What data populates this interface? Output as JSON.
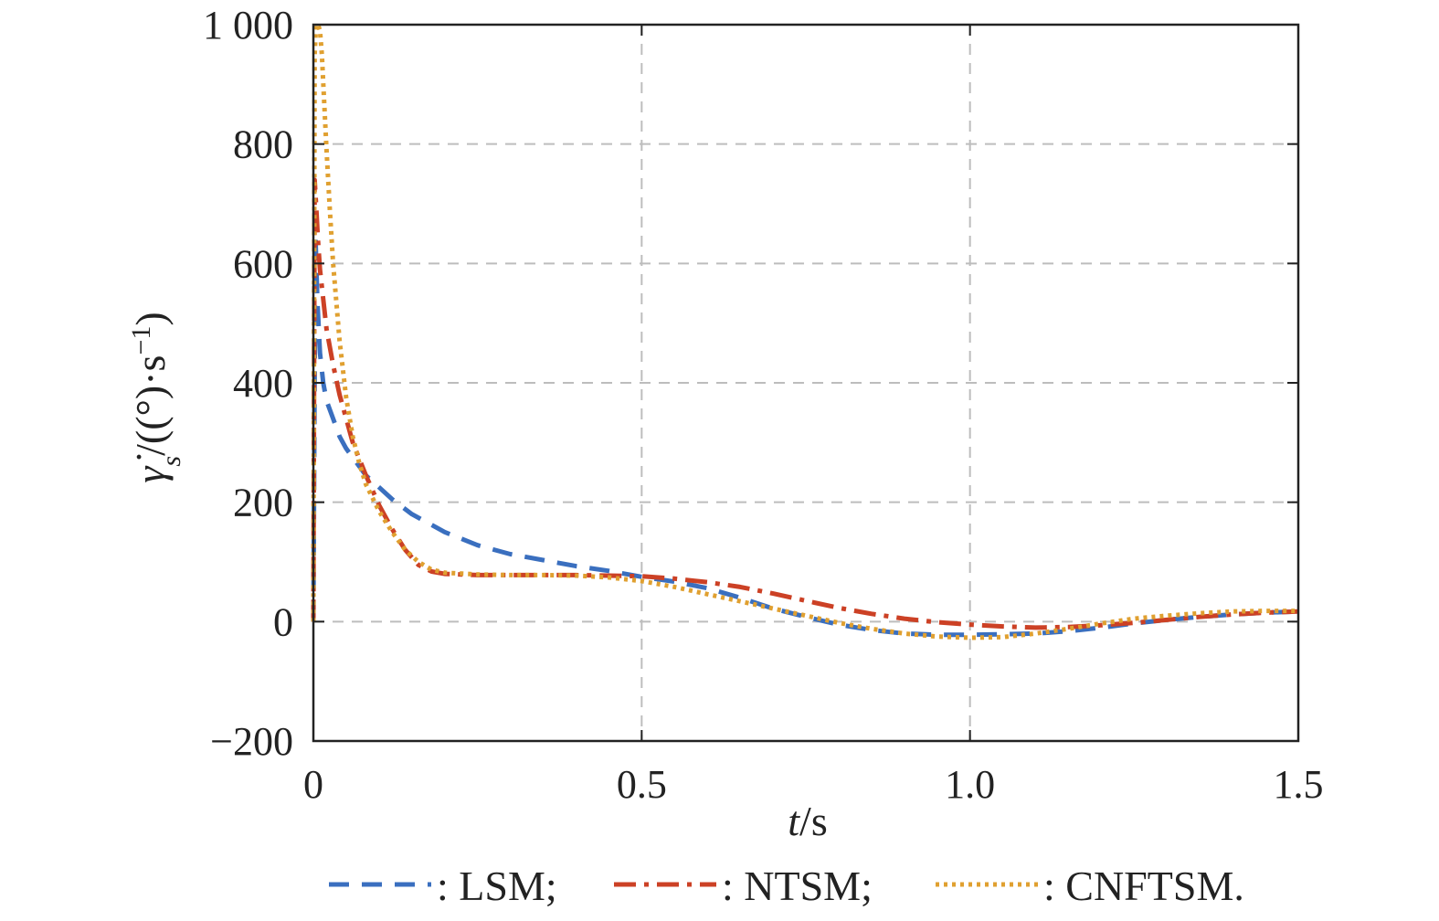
{
  "chart_data": {
    "type": "line",
    "title": "",
    "xlabel_var": "t",
    "xlabel_unit": "/s",
    "ylabel_var": "γ̇",
    "ylabel_sub": "s",
    "ylabel_unit_main": "/((°)·s",
    "ylabel_unit_exp": "−1",
    "ylabel_unit_close": ")",
    "xlim": [
      0,
      1.5
    ],
    "ylim": [
      -200,
      1000
    ],
    "xticks": [
      0,
      0.5,
      1.0,
      1.5
    ],
    "xtick_labels": [
      "0",
      "0.5",
      "1.0",
      "1.5"
    ],
    "yticks": [
      -200,
      0,
      200,
      400,
      600,
      800,
      1000
    ],
    "ytick_labels": [
      "−200",
      "0",
      "200",
      "400",
      "600",
      "800",
      "1 000"
    ],
    "grid": true,
    "legend_position": "bottom",
    "series": [
      {
        "name": ": LSM;",
        "color": "#3a6fbf",
        "style": "dashed",
        "x": [
          0,
          0.003,
          0.006,
          0.01,
          0.015,
          0.02,
          0.03,
          0.04,
          0.05,
          0.06,
          0.08,
          0.1,
          0.12,
          0.15,
          0.2,
          0.25,
          0.3,
          0.35,
          0.4,
          0.45,
          0.5,
          0.55,
          0.6,
          0.65,
          0.7,
          0.75,
          0.8,
          0.85,
          0.9,
          0.95,
          1.0,
          1.05,
          1.1,
          1.15,
          1.2,
          1.25,
          1.3,
          1.35,
          1.4,
          1.45,
          1.5
        ],
        "values": [
          0,
          650,
          540,
          450,
          400,
          370,
          340,
          310,
          290,
          275,
          245,
          225,
          205,
          180,
          150,
          128,
          113,
          103,
          93,
          85,
          75,
          67,
          56,
          40,
          22,
          8,
          -5,
          -14,
          -20,
          -22,
          -22,
          -21,
          -20,
          -16,
          -10,
          -3,
          3,
          8,
          12,
          15,
          17
        ]
      },
      {
        "name": ": NTSM;",
        "color": "#cc4125",
        "style": "dashdot",
        "x": [
          0,
          0.002,
          0.004,
          0.007,
          0.01,
          0.015,
          0.02,
          0.03,
          0.04,
          0.05,
          0.06,
          0.08,
          0.1,
          0.12,
          0.14,
          0.16,
          0.18,
          0.2,
          0.25,
          0.3,
          0.35,
          0.4,
          0.45,
          0.5,
          0.55,
          0.6,
          0.65,
          0.7,
          0.75,
          0.8,
          0.85,
          0.9,
          0.95,
          1.0,
          1.05,
          1.1,
          1.15,
          1.2,
          1.25,
          1.3,
          1.35,
          1.4,
          1.45,
          1.5
        ],
        "values": [
          0,
          740,
          700,
          640,
          590,
          540,
          490,
          430,
          380,
          340,
          300,
          245,
          195,
          155,
          120,
          95,
          84,
          80,
          78,
          78,
          78,
          78,
          77,
          76,
          72,
          66,
          58,
          47,
          35,
          23,
          13,
          5,
          -1,
          -5,
          -8,
          -10,
          -9,
          -6,
          -2,
          3,
          8,
          12,
          15,
          17
        ]
      },
      {
        "name": ": CNFTSM.",
        "color": "#e0a030",
        "style": "dotted",
        "x": [
          0,
          0.002,
          0.004,
          0.007,
          0.01,
          0.013,
          0.016,
          0.02,
          0.025,
          0.03,
          0.04,
          0.05,
          0.06,
          0.07,
          0.08,
          0.1,
          0.12,
          0.14,
          0.16,
          0.18,
          0.2,
          0.25,
          0.3,
          0.35,
          0.4,
          0.45,
          0.5,
          0.55,
          0.6,
          0.65,
          0.7,
          0.75,
          0.8,
          0.85,
          0.9,
          0.95,
          1.0,
          1.05,
          1.1,
          1.15,
          1.2,
          1.25,
          1.3,
          1.35,
          1.4,
          1.45,
          1.5
        ],
        "values": [
          0,
          950,
          1000,
          1000,
          990,
          950,
          880,
          790,
          690,
          600,
          470,
          375,
          310,
          265,
          230,
          185,
          150,
          120,
          100,
          87,
          82,
          79,
          78,
          78,
          77,
          74,
          68,
          58,
          46,
          34,
          22,
          10,
          -2,
          -12,
          -20,
          -25,
          -27,
          -26,
          -20,
          -12,
          -3,
          5,
          10,
          14,
          17,
          18,
          18
        ]
      }
    ]
  }
}
